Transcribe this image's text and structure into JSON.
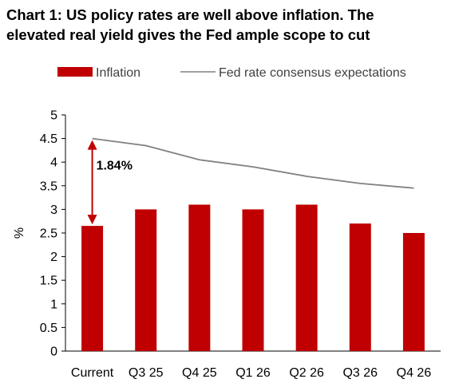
{
  "title_lines": [
    "Chart 1: US policy rates are well above inflation. The",
    "elevated real yield gives the Fed ample scope to cut"
  ],
  "chart_data": {
    "type": "bar",
    "categories": [
      "Current",
      "Q3 25",
      "Q4 25",
      "Q1 26",
      "Q2 26",
      "Q3 26",
      "Q4 26"
    ],
    "series": [
      {
        "name": "Inflation",
        "type": "bar",
        "color": "#C00000",
        "values": [
          2.65,
          3.0,
          3.1,
          3.0,
          3.1,
          2.7,
          2.5
        ]
      },
      {
        "name": "Fed rate consensus expectations",
        "type": "line",
        "color": "#808080",
        "values": [
          4.5,
          4.35,
          4.05,
          3.9,
          3.7,
          3.55,
          3.45
        ]
      }
    ],
    "ylabel": "%",
    "ylim": [
      0,
      5
    ],
    "yticks": [
      "0",
      "0.5",
      "1",
      "1.5",
      "2",
      "2.5",
      "3",
      "3.5",
      "4",
      "4.5",
      "5"
    ],
    "grid": false,
    "legend_position": "top",
    "annotation": {
      "text": "1.84%",
      "from": 2.65,
      "to": 4.5,
      "category": "Current",
      "color": "#C00000"
    }
  }
}
